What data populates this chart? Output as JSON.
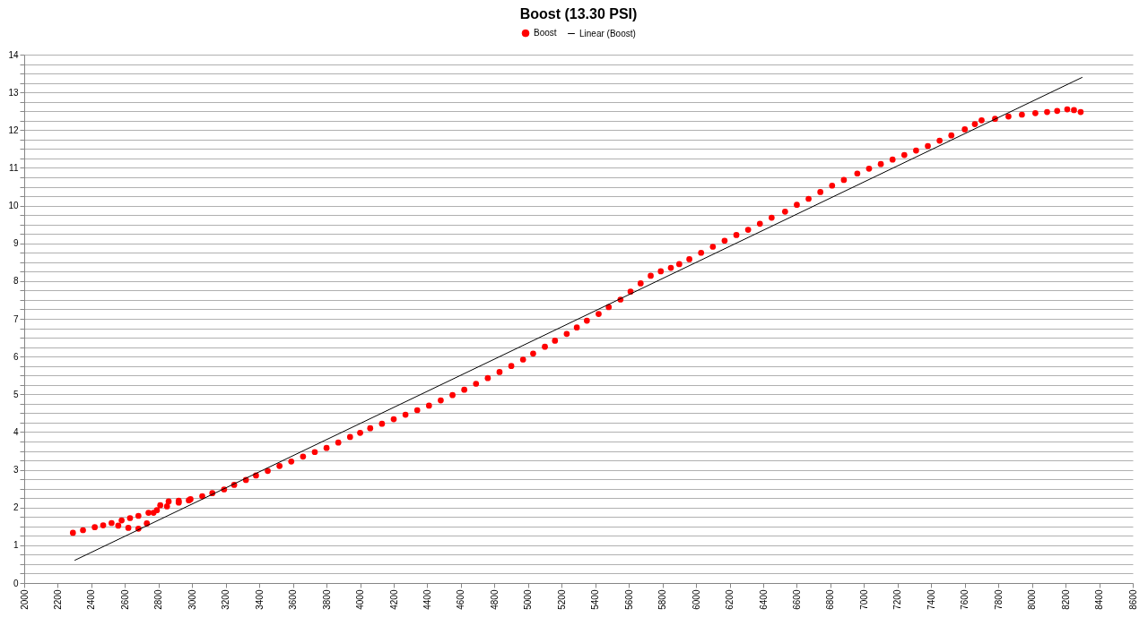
{
  "chart_data": {
    "type": "scatter",
    "title": "Boost (13.30 PSI)",
    "xlim": [
      2000,
      8600
    ],
    "xticks": [
      2000,
      2200,
      2400,
      2600,
      2800,
      3000,
      3200,
      3400,
      3600,
      3800,
      4000,
      4200,
      4400,
      4600,
      4800,
      5000,
      5200,
      5400,
      5600,
      5800,
      6000,
      6200,
      6400,
      6600,
      6800,
      7000,
      7200,
      7400,
      7600,
      7800,
      8000,
      8200,
      8400,
      8600
    ],
    "ylim": [
      0,
      14
    ],
    "yticks": [
      0,
      {
        "value": 0.25,
        "label": null
      },
      {
        "value": 0.5,
        "label": null
      },
      {
        "value": 0.75,
        "label": null
      },
      1,
      {
        "value": 1.25,
        "label": null
      },
      {
        "value": 1.5,
        "label": null
      },
      {
        "value": 1.75,
        "label": null
      },
      2,
      {
        "value": 2.25,
        "label": null
      },
      {
        "value": 2.5,
        "label": null
      },
      {
        "value": 2.75,
        "label": null
      },
      3,
      {
        "value": 3.25,
        "label": null
      },
      {
        "value": 3.5,
        "label": null
      },
      {
        "value": 3.75,
        "label": null
      },
      4,
      {
        "value": 4.25,
        "label": null
      },
      {
        "value": 4.5,
        "label": null
      },
      {
        "value": 4.75,
        "label": null
      },
      5,
      {
        "value": 5.25,
        "label": null
      },
      {
        "value": 5.5,
        "label": null
      },
      {
        "value": 5.75,
        "label": null
      },
      6,
      {
        "value": 6.25,
        "label": null
      },
      {
        "value": 6.5,
        "label": null
      },
      {
        "value": 6.75,
        "label": null
      },
      7,
      {
        "value": 7.25,
        "label": null
      },
      {
        "value": 7.5,
        "label": null
      },
      {
        "value": 7.75,
        "label": null
      },
      8,
      {
        "value": 8.25,
        "label": null
      },
      {
        "value": 8.5,
        "label": null
      },
      {
        "value": 8.75,
        "label": null
      },
      9,
      {
        "value": 9.25,
        "label": null
      },
      {
        "value": 9.5,
        "label": null
      },
      {
        "value": 9.75,
        "label": null
      },
      10,
      {
        "value": 10.25,
        "label": null
      },
      {
        "value": 10.5,
        "label": null
      },
      {
        "value": 10.75,
        "label": null
      },
      11,
      {
        "value": 11.25,
        "label": null
      },
      {
        "value": 11.5,
        "label": null
      },
      {
        "value": 11.75,
        "label": null
      },
      12,
      {
        "value": 12.25,
        "label": null
      },
      {
        "value": 12.5,
        "label": null
      },
      {
        "value": 12.75,
        "label": null
      },
      13,
      {
        "value": 13.25,
        "label": null
      },
      {
        "value": 13.5,
        "label": null
      },
      {
        "value": 13.75,
        "label": null
      },
      14
    ],
    "grid": "y",
    "legend": "top",
    "series": [
      {
        "name": "Boost",
        "marker": "circle",
        "color": "#ff0000",
        "x": [
          2290,
          2350,
          2420,
          2470,
          2520,
          2580,
          2630,
          2680,
          2740,
          2790,
          2850,
          2920,
          2990,
          3060,
          3120,
          3190,
          2560,
          2620,
          2680,
          2730,
          2770,
          2810,
          2860,
          2920,
          2980,
          3250,
          3320,
          3380,
          3450,
          3520,
          3590,
          3660,
          3730,
          3800,
          3870,
          3940,
          4000,
          4060,
          4130,
          4200,
          4270,
          4340,
          4410,
          4480,
          4550,
          4620,
          4690,
          4760,
          4830,
          4900,
          4970,
          5030,
          5100,
          5160,
          5230,
          5290,
          5350,
          5420,
          5480,
          5550,
          5610,
          5670,
          5730,
          5790,
          5850,
          5900,
          5960,
          6030,
          6100,
          6170,
          6240,
          6310,
          6380,
          6450,
          6530,
          6600,
          6670,
          6740,
          6810,
          6880,
          6960,
          7030,
          7100,
          7170,
          7240,
          7310,
          7380,
          7450,
          7520,
          7600,
          7660,
          7700,
          7780,
          7860,
          7940,
          8020,
          8090,
          8150,
          8210,
          8250,
          8290
        ],
        "values": [
          1.33,
          1.4,
          1.48,
          1.53,
          1.59,
          1.66,
          1.72,
          1.78,
          1.86,
          1.93,
          2.03,
          2.13,
          2.22,
          2.3,
          2.38,
          2.48,
          1.52,
          1.46,
          1.44,
          1.58,
          1.86,
          2.06,
          2.16,
          2.18,
          2.19,
          2.6,
          2.73,
          2.85,
          2.97,
          3.1,
          3.22,
          3.35,
          3.47,
          3.58,
          3.72,
          3.87,
          3.98,
          4.1,
          4.22,
          4.34,
          4.46,
          4.58,
          4.7,
          4.84,
          4.98,
          5.12,
          5.28,
          5.43,
          5.59,
          5.75,
          5.92,
          6.08,
          6.26,
          6.42,
          6.6,
          6.77,
          6.95,
          7.13,
          7.31,
          7.51,
          7.72,
          7.94,
          8.14,
          8.26,
          8.35,
          8.45,
          8.58,
          8.75,
          8.91,
          9.07,
          9.22,
          9.36,
          9.52,
          9.68,
          9.84,
          10.02,
          10.18,
          10.36,
          10.53,
          10.68,
          10.85,
          10.98,
          11.1,
          11.22,
          11.34,
          11.46,
          11.58,
          11.72,
          11.86,
          12.02,
          12.16,
          12.26,
          12.3,
          12.36,
          12.41,
          12.45,
          12.48,
          12.51,
          12.55,
          12.53,
          12.48
        ]
      },
      {
        "name": "Linear (Boost)",
        "type": "line",
        "color": "#000000",
        "x": [
          2300,
          8300
        ],
        "values": [
          0.6,
          13.4
        ]
      }
    ]
  }
}
